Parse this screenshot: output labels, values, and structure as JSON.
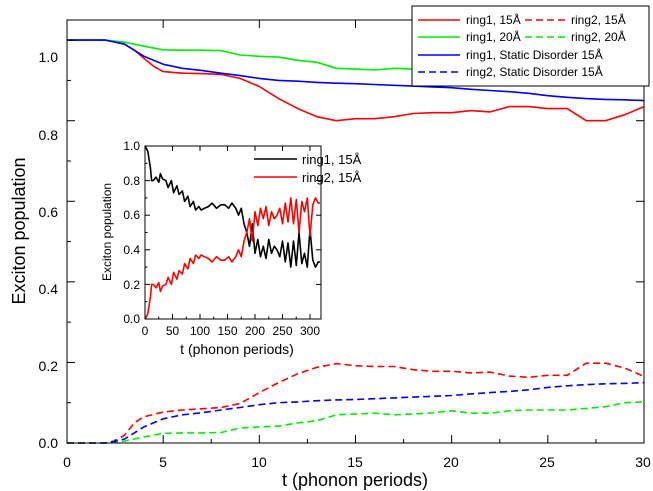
{
  "chart_data": [
    {
      "type": "line",
      "title": "",
      "xlabel": "t (phonon periods)",
      "ylabel": "Exciton population",
      "xlim": [
        0,
        30
      ],
      "ylim": [
        0,
        1.05
      ],
      "x_ticks": [
        0,
        5,
        10,
        15,
        20,
        25,
        30
      ],
      "y_ticks": [
        0.0,
        0.2,
        0.4,
        0.6,
        0.8,
        1.0
      ],
      "x_tick_labels": [
        "0",
        "5",
        "10",
        "15",
        "20",
        "25",
        "30"
      ],
      "y_tick_labels": [
        "0.0",
        "0.2",
        "0.4",
        "0.6",
        "0.8",
        "1.0"
      ],
      "grid": false,
      "legend_position": "top-right",
      "series": [
        {
          "name": "ring1, 15Å",
          "color": "#ff0000",
          "dash": "solid",
          "x": [
            0,
            2,
            3,
            3.5,
            4,
            4.5,
            5,
            6,
            7,
            8,
            9,
            10,
            11,
            12,
            13,
            14,
            15,
            16,
            17,
            18,
            19,
            20,
            21,
            22,
            23,
            24,
            25,
            26,
            27,
            28,
            29,
            30
          ],
          "y": [
            1.0,
            1.0,
            0.99,
            0.975,
            0.955,
            0.935,
            0.922,
            0.918,
            0.917,
            0.915,
            0.905,
            0.885,
            0.855,
            0.83,
            0.81,
            0.8,
            0.805,
            0.805,
            0.81,
            0.818,
            0.82,
            0.82,
            0.825,
            0.822,
            0.835,
            0.835,
            0.83,
            0.83,
            0.8,
            0.8,
            0.815,
            0.835
          ]
        },
        {
          "name": "ring2, 15Å",
          "color": "#ff0000",
          "dash": "dashed",
          "x": [
            0,
            2,
            2.5,
            3,
            3.5,
            4,
            5,
            6,
            7,
            8,
            9,
            10,
            11,
            12,
            13,
            14,
            15,
            16,
            17,
            18,
            19,
            20,
            21,
            22,
            23,
            24,
            25,
            26,
            27,
            28,
            29,
            30
          ],
          "y": [
            0.0,
            0.0,
            0.005,
            0.02,
            0.05,
            0.065,
            0.077,
            0.082,
            0.085,
            0.088,
            0.098,
            0.125,
            0.15,
            0.172,
            0.188,
            0.197,
            0.192,
            0.19,
            0.19,
            0.182,
            0.178,
            0.178,
            0.174,
            0.176,
            0.166,
            0.163,
            0.168,
            0.168,
            0.198,
            0.198,
            0.186,
            0.165
          ]
        },
        {
          "name": "ring1, 20Å",
          "color": "#00ee00",
          "dash": "solid",
          "x": [
            0,
            2,
            3,
            3.5,
            4,
            5,
            6,
            7,
            8,
            9,
            10,
            11,
            12,
            13,
            14,
            15,
            16,
            17,
            18,
            19,
            20,
            21,
            22,
            23,
            24,
            25,
            26,
            27,
            28,
            29,
            30
          ],
          "y": [
            1.0,
            1.0,
            0.995,
            0.99,
            0.985,
            0.976,
            0.975,
            0.975,
            0.974,
            0.963,
            0.96,
            0.958,
            0.95,
            0.945,
            0.93,
            0.928,
            0.926,
            0.93,
            0.928,
            0.925,
            0.92,
            0.926,
            0.926,
            0.92,
            0.918,
            0.918,
            0.918,
            0.914,
            0.91,
            0.9,
            0.898
          ]
        },
        {
          "name": "ring2, 20Å",
          "color": "#00ee00",
          "dash": "dashed",
          "x": [
            0,
            2,
            3,
            3.5,
            4,
            5,
            6,
            7,
            8,
            9,
            10,
            11,
            12,
            13,
            14,
            15,
            16,
            17,
            18,
            19,
            20,
            21,
            22,
            23,
            24,
            25,
            26,
            27,
            28,
            29,
            30
          ],
          "y": [
            0.0,
            0.0,
            0.005,
            0.01,
            0.015,
            0.024,
            0.025,
            0.025,
            0.026,
            0.037,
            0.04,
            0.042,
            0.05,
            0.055,
            0.07,
            0.072,
            0.074,
            0.07,
            0.072,
            0.075,
            0.08,
            0.074,
            0.074,
            0.08,
            0.082,
            0.082,
            0.082,
            0.086,
            0.09,
            0.1,
            0.102
          ]
        },
        {
          "name": "ring1, Static Disorder 15Å",
          "color": "#0000ff",
          "dash": "solid",
          "x": [
            0,
            2,
            3,
            3.5,
            4,
            5,
            6,
            7,
            8,
            9,
            10,
            11,
            12,
            13,
            14,
            15,
            16,
            17,
            18,
            19,
            20,
            21,
            22,
            23,
            24,
            25,
            26,
            27,
            28,
            29,
            30
          ],
          "y": [
            1.0,
            1.0,
            0.99,
            0.975,
            0.96,
            0.94,
            0.93,
            0.925,
            0.918,
            0.912,
            0.905,
            0.9,
            0.898,
            0.895,
            0.893,
            0.892,
            0.89,
            0.888,
            0.886,
            0.884,
            0.882,
            0.878,
            0.875,
            0.872,
            0.868,
            0.862,
            0.858,
            0.855,
            0.853,
            0.852,
            0.85
          ]
        },
        {
          "name": "ring2, Static Disorder 15Å",
          "color": "#0000ff",
          "dash": "dashed",
          "x": [
            0,
            2,
            3,
            3.5,
            4,
            5,
            6,
            7,
            8,
            9,
            10,
            11,
            12,
            13,
            14,
            15,
            16,
            17,
            18,
            19,
            20,
            21,
            22,
            23,
            24,
            25,
            26,
            27,
            28,
            29,
            30
          ],
          "y": [
            0.0,
            0.0,
            0.01,
            0.025,
            0.04,
            0.06,
            0.07,
            0.075,
            0.082,
            0.088,
            0.095,
            0.1,
            0.102,
            0.105,
            0.107,
            0.108,
            0.11,
            0.112,
            0.114,
            0.116,
            0.118,
            0.122,
            0.125,
            0.128,
            0.132,
            0.138,
            0.142,
            0.145,
            0.147,
            0.148,
            0.15
          ]
        }
      ]
    },
    {
      "type": "line",
      "title": "",
      "xlabel": "t (phonon periods)",
      "ylabel": "Exciton population",
      "xlim": [
        0,
        320
      ],
      "ylim": [
        0,
        1.0
      ],
      "x_ticks": [
        0,
        50,
        100,
        150,
        200,
        250,
        300
      ],
      "y_ticks": [
        0.0,
        0.2,
        0.4,
        0.6,
        0.8,
        1.0
      ],
      "x_tick_labels": [
        "0",
        "50",
        "100",
        "150",
        "200",
        "250",
        "300"
      ],
      "y_tick_labels": [
        "0.0",
        "0.2",
        "0.4",
        "0.6",
        "0.8",
        "1.0"
      ],
      "grid": false,
      "legend_position": "top-right",
      "series": [
        {
          "name": "ring1, 15Å",
          "color": "#000000",
          "dash": "solid",
          "x": [
            0,
            5,
            10,
            12,
            15,
            20,
            25,
            28,
            32,
            38,
            42,
            48,
            52,
            58,
            62,
            68,
            72,
            78,
            82,
            88,
            92,
            98,
            102,
            108,
            115,
            122,
            130,
            138,
            145,
            152,
            158,
            165,
            170,
            175,
            180,
            185,
            190,
            195,
            200,
            205,
            210,
            215,
            220,
            225,
            230,
            235,
            240,
            245,
            250,
            255,
            260,
            265,
            270,
            275,
            280,
            285,
            290,
            295,
            300,
            305,
            310,
            315,
            318
          ],
          "y": [
            1.0,
            0.97,
            0.87,
            0.8,
            0.8,
            0.82,
            0.79,
            0.84,
            0.81,
            0.8,
            0.76,
            0.8,
            0.73,
            0.77,
            0.72,
            0.74,
            0.68,
            0.71,
            0.65,
            0.68,
            0.63,
            0.65,
            0.63,
            0.64,
            0.65,
            0.67,
            0.64,
            0.66,
            0.66,
            0.64,
            0.67,
            0.64,
            0.6,
            0.64,
            0.55,
            0.5,
            0.42,
            0.55,
            0.38,
            0.46,
            0.36,
            0.42,
            0.35,
            0.46,
            0.38,
            0.42,
            0.4,
            0.36,
            0.45,
            0.33,
            0.44,
            0.3,
            0.45,
            0.31,
            0.5,
            0.32,
            0.38,
            0.3,
            0.52,
            0.34,
            0.3,
            0.33,
            0.33
          ]
        },
        {
          "name": "ring2, 15Å",
          "color": "#ff0000",
          "dash": "solid",
          "x": [
            0,
            5,
            10,
            12,
            15,
            20,
            25,
            28,
            32,
            38,
            42,
            48,
            52,
            58,
            62,
            68,
            72,
            78,
            82,
            88,
            92,
            98,
            102,
            108,
            115,
            122,
            130,
            138,
            145,
            152,
            158,
            165,
            170,
            175,
            180,
            185,
            190,
            195,
            200,
            205,
            210,
            215,
            220,
            225,
            230,
            235,
            240,
            245,
            250,
            255,
            260,
            265,
            270,
            275,
            280,
            285,
            290,
            295,
            300,
            305,
            310,
            315,
            318
          ],
          "y": [
            0.0,
            0.03,
            0.13,
            0.2,
            0.2,
            0.18,
            0.21,
            0.16,
            0.19,
            0.2,
            0.24,
            0.2,
            0.27,
            0.23,
            0.28,
            0.26,
            0.32,
            0.29,
            0.35,
            0.32,
            0.37,
            0.35,
            0.37,
            0.36,
            0.35,
            0.33,
            0.36,
            0.34,
            0.34,
            0.36,
            0.33,
            0.36,
            0.4,
            0.36,
            0.45,
            0.5,
            0.58,
            0.45,
            0.62,
            0.54,
            0.64,
            0.58,
            0.65,
            0.54,
            0.62,
            0.58,
            0.6,
            0.64,
            0.55,
            0.67,
            0.56,
            0.7,
            0.55,
            0.69,
            0.5,
            0.68,
            0.62,
            0.7,
            0.48,
            0.66,
            0.7,
            0.67,
            0.67
          ]
        }
      ]
    }
  ]
}
